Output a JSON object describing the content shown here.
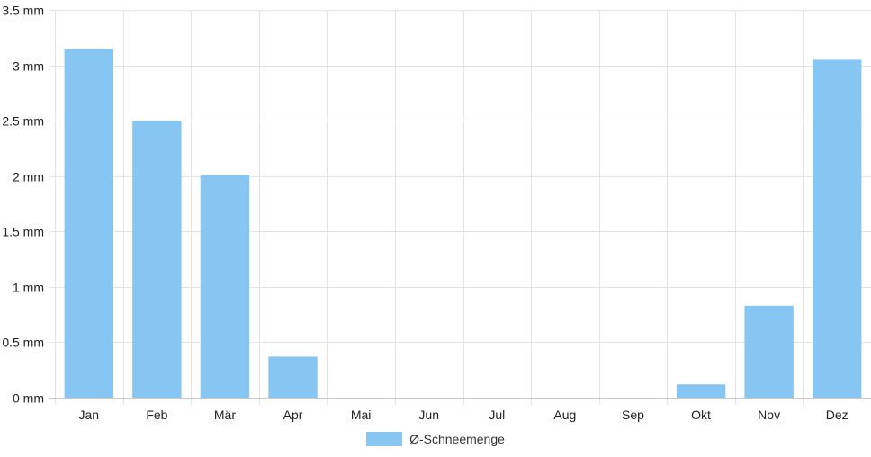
{
  "chart_data": {
    "type": "bar",
    "categories": [
      "Jan",
      "Feb",
      "Mär",
      "Apr",
      "Mai",
      "Jun",
      "Jul",
      "Aug",
      "Sep",
      "Okt",
      "Nov",
      "Dez"
    ],
    "series": [
      {
        "name": "Ø-Schneemenge",
        "values": [
          3.15,
          2.5,
          2.01,
          0.37,
          0,
          0,
          0,
          0,
          0,
          0.12,
          0.83,
          3.05
        ],
        "color": "#87c5f2"
      }
    ],
    "ylim": [
      0,
      3.5
    ],
    "y_ticks": [
      "0 mm",
      "0.5 mm",
      "1 mm",
      "1.5 mm",
      "2 mm",
      "2.5 mm",
      "3 mm",
      "3.5 mm"
    ],
    "y_tick_values": [
      0,
      0.5,
      1,
      1.5,
      2,
      2.5,
      3,
      3.5
    ],
    "grid": true,
    "legend_position": "bottom",
    "title": "",
    "xlabel": "",
    "ylabel": ""
  }
}
